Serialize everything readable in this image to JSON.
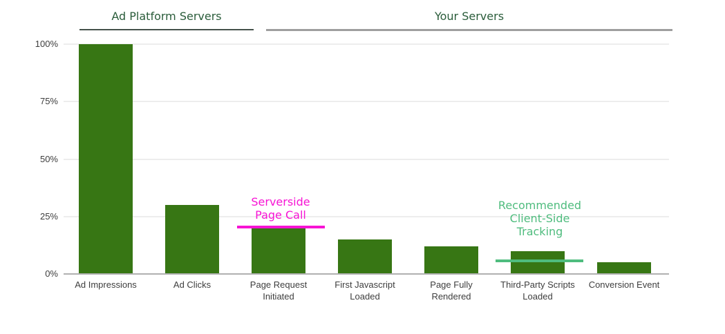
{
  "chart_data": {
    "type": "bar",
    "title": "",
    "xlabel": "",
    "ylabel": "",
    "ylim": [
      0,
      100
    ],
    "grid": true,
    "bar_color": "#377614",
    "categories": [
      "Ad Impressions",
      "Ad Clicks",
      "Page Request Initiated",
      "First Javascript Loaded",
      "Page Fully Rendered",
      "Third-Party Scripts Loaded",
      "Conversion Event"
    ],
    "values": [
      100,
      30,
      20,
      15,
      12,
      10,
      5
    ],
    "yticks": [
      {
        "label": "100%",
        "value": 100
      },
      {
        "label": "75%",
        "value": 75
      },
      {
        "label": "50%",
        "value": 50
      },
      {
        "label": "25%",
        "value": 25
      },
      {
        "label": "0%",
        "value": 0
      }
    ],
    "groups": [
      {
        "label": "Ad Platform Servers",
        "underline_color": "#44514a"
      },
      {
        "label": "Your Servers",
        "underline_color": "#9e9e9e"
      }
    ],
    "annotations": [
      {
        "text": "Serverside\nPage Call",
        "color": "#f713d4",
        "line_value": 20.5,
        "target_category": "Page Request Initiated"
      },
      {
        "text": "Recommended\nClient-Side\nTracking",
        "color": "#4fbc7e",
        "line_value": 5.7,
        "target_category": "Third-Party Scripts Loaded"
      }
    ]
  }
}
